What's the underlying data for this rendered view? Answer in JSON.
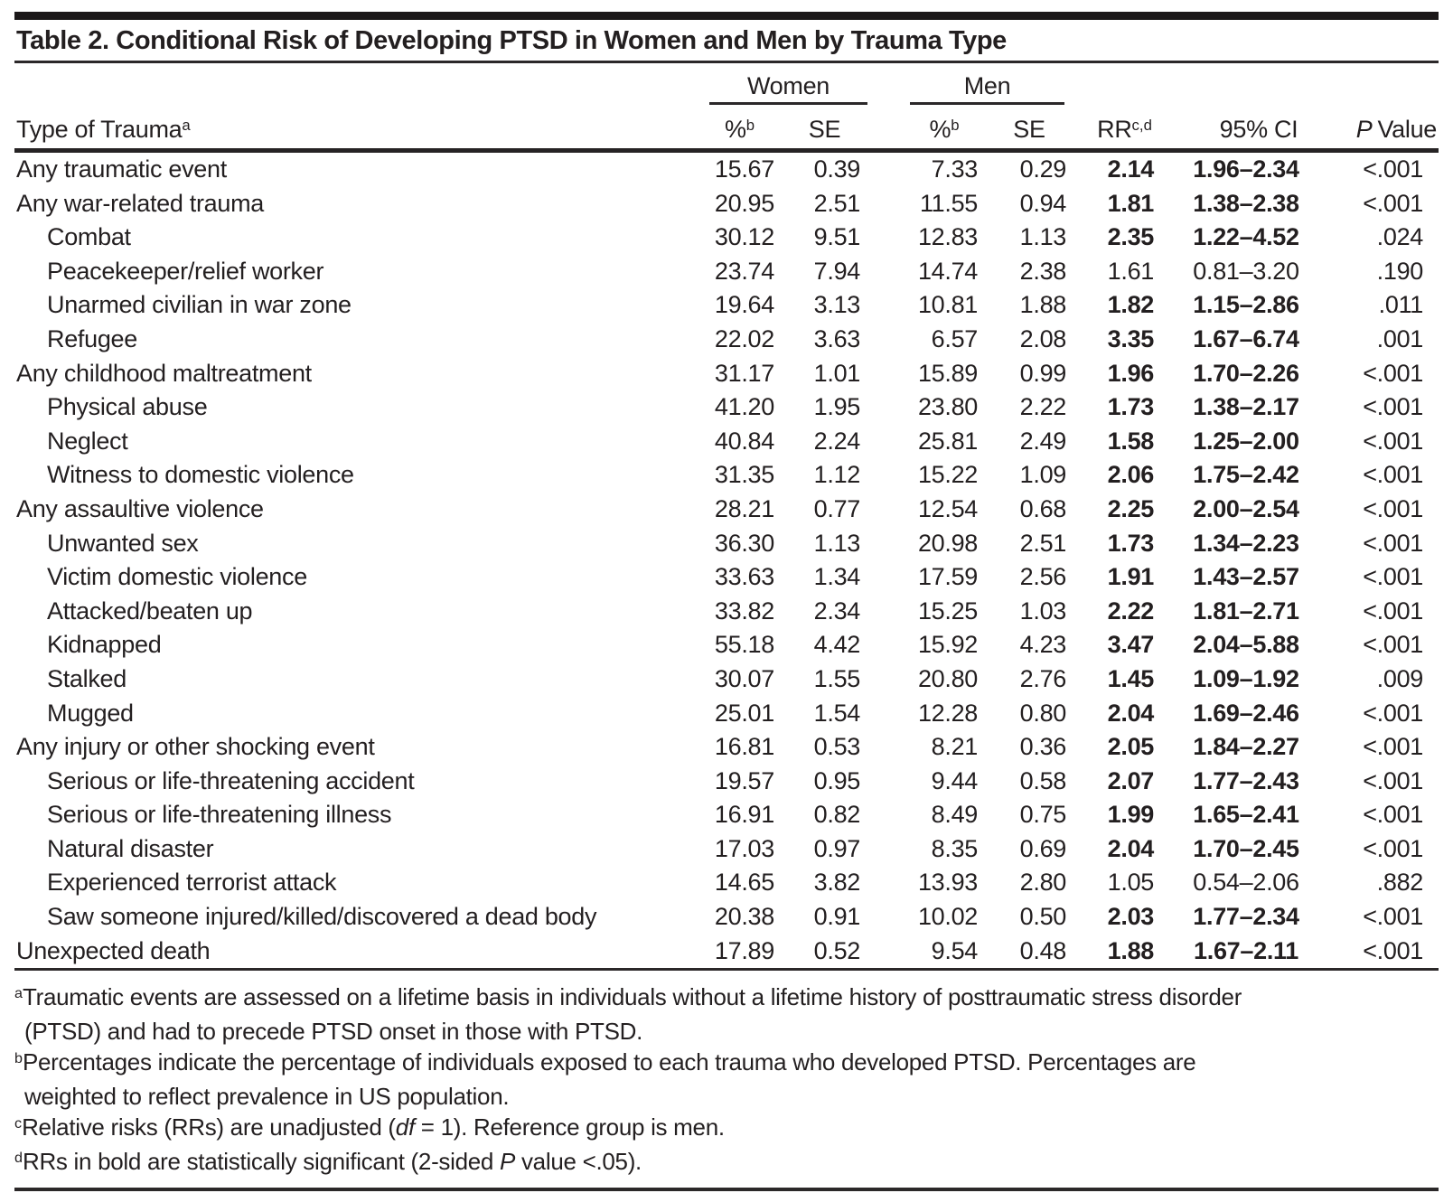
{
  "title": "Table 2. Conditional Risk of Developing PTSD in Women and Men by Trauma Type",
  "header": {
    "trauma_label": "Type of Trauma",
    "trauma_sup": "a",
    "women": "Women",
    "men": "Men",
    "pct": "%",
    "pct_sup": "b",
    "se": "SE",
    "rr": "RR",
    "rr_sup": "c,d",
    "ci": "95% CI",
    "p_italic": "P",
    "p_rest": "Value"
  },
  "rows": [
    {
      "label": "Any traumatic event",
      "indent": false,
      "w_pct": "15.67",
      "w_se": "0.39",
      "m_pct": "7.33",
      "m_se": "0.29",
      "rr": "2.14",
      "ci": "1.96–2.34",
      "p": "<.001",
      "sig": true
    },
    {
      "label": "Any war-related trauma",
      "indent": false,
      "w_pct": "20.95",
      "w_se": "2.51",
      "m_pct": "11.55",
      "m_se": "0.94",
      "rr": "1.81",
      "ci": "1.38–2.38",
      "p": "<.001",
      "sig": true
    },
    {
      "label": "Combat",
      "indent": true,
      "w_pct": "30.12",
      "w_se": "9.51",
      "m_pct": "12.83",
      "m_se": "1.13",
      "rr": "2.35",
      "ci": "1.22–4.52",
      "p": ".024",
      "sig": true
    },
    {
      "label": "Peacekeeper/relief worker",
      "indent": true,
      "w_pct": "23.74",
      "w_se": "7.94",
      "m_pct": "14.74",
      "m_se": "2.38",
      "rr": "1.61",
      "ci": "0.81–3.20",
      "p": ".190",
      "sig": false
    },
    {
      "label": "Unarmed civilian in war zone",
      "indent": true,
      "w_pct": "19.64",
      "w_se": "3.13",
      "m_pct": "10.81",
      "m_se": "1.88",
      "rr": "1.82",
      "ci": "1.15–2.86",
      "p": ".011",
      "sig": true
    },
    {
      "label": "Refugee",
      "indent": true,
      "w_pct": "22.02",
      "w_se": "3.63",
      "m_pct": "6.57",
      "m_se": "2.08",
      "rr": "3.35",
      "ci": "1.67–6.74",
      "p": ".001",
      "sig": true
    },
    {
      "label": "Any childhood maltreatment",
      "indent": false,
      "w_pct": "31.17",
      "w_se": "1.01",
      "m_pct": "15.89",
      "m_se": "0.99",
      "rr": "1.96",
      "ci": "1.70–2.26",
      "p": "<.001",
      "sig": true
    },
    {
      "label": "Physical abuse",
      "indent": true,
      "w_pct": "41.20",
      "w_se": "1.95",
      "m_pct": "23.80",
      "m_se": "2.22",
      "rr": "1.73",
      "ci": "1.38–2.17",
      "p": "<.001",
      "sig": true
    },
    {
      "label": "Neglect",
      "indent": true,
      "w_pct": "40.84",
      "w_se": "2.24",
      "m_pct": "25.81",
      "m_se": "2.49",
      "rr": "1.58",
      "ci": "1.25–2.00",
      "p": "<.001",
      "sig": true
    },
    {
      "label": "Witness to domestic violence",
      "indent": true,
      "w_pct": "31.35",
      "w_se": "1.12",
      "m_pct": "15.22",
      "m_se": "1.09",
      "rr": "2.06",
      "ci": "1.75–2.42",
      "p": "<.001",
      "sig": true
    },
    {
      "label": "Any assaultive violence",
      "indent": false,
      "w_pct": "28.21",
      "w_se": "0.77",
      "m_pct": "12.54",
      "m_se": "0.68",
      "rr": "2.25",
      "ci": "2.00–2.54",
      "p": "<.001",
      "sig": true
    },
    {
      "label": "Unwanted sex",
      "indent": true,
      "w_pct": "36.30",
      "w_se": "1.13",
      "m_pct": "20.98",
      "m_se": "2.51",
      "rr": "1.73",
      "ci": "1.34–2.23",
      "p": "<.001",
      "sig": true
    },
    {
      "label": "Victim domestic violence",
      "indent": true,
      "w_pct": "33.63",
      "w_se": "1.34",
      "m_pct": "17.59",
      "m_se": "2.56",
      "rr": "1.91",
      "ci": "1.43–2.57",
      "p": "<.001",
      "sig": true
    },
    {
      "label": "Attacked/beaten up",
      "indent": true,
      "w_pct": "33.82",
      "w_se": "2.34",
      "m_pct": "15.25",
      "m_se": "1.03",
      "rr": "2.22",
      "ci": "1.81–2.71",
      "p": "<.001",
      "sig": true
    },
    {
      "label": "Kidnapped",
      "indent": true,
      "w_pct": "55.18",
      "w_se": "4.42",
      "m_pct": "15.92",
      "m_se": "4.23",
      "rr": "3.47",
      "ci": "2.04–5.88",
      "p": "<.001",
      "sig": true
    },
    {
      "label": "Stalked",
      "indent": true,
      "w_pct": "30.07",
      "w_se": "1.55",
      "m_pct": "20.80",
      "m_se": "2.76",
      "rr": "1.45",
      "ci": "1.09–1.92",
      "p": ".009",
      "sig": true
    },
    {
      "label": "Mugged",
      "indent": true,
      "w_pct": "25.01",
      "w_se": "1.54",
      "m_pct": "12.28",
      "m_se": "0.80",
      "rr": "2.04",
      "ci": "1.69–2.46",
      "p": "<.001",
      "sig": true
    },
    {
      "label": "Any injury or other shocking event",
      "indent": false,
      "w_pct": "16.81",
      "w_se": "0.53",
      "m_pct": "8.21",
      "m_se": "0.36",
      "rr": "2.05",
      "ci": "1.84–2.27",
      "p": "<.001",
      "sig": true
    },
    {
      "label": "Serious or life-threatening accident",
      "indent": true,
      "w_pct": "19.57",
      "w_se": "0.95",
      "m_pct": "9.44",
      "m_se": "0.58",
      "rr": "2.07",
      "ci": "1.77–2.43",
      "p": "<.001",
      "sig": true
    },
    {
      "label": "Serious or life-threatening illness",
      "indent": true,
      "w_pct": "16.91",
      "w_se": "0.82",
      "m_pct": "8.49",
      "m_se": "0.75",
      "rr": "1.99",
      "ci": "1.65–2.41",
      "p": "<.001",
      "sig": true
    },
    {
      "label": "Natural disaster",
      "indent": true,
      "w_pct": "17.03",
      "w_se": "0.97",
      "m_pct": "8.35",
      "m_se": "0.69",
      "rr": "2.04",
      "ci": "1.70–2.45",
      "p": "<.001",
      "sig": true
    },
    {
      "label": "Experienced terrorist attack",
      "indent": true,
      "w_pct": "14.65",
      "w_se": "3.82",
      "m_pct": "13.93",
      "m_se": "2.80",
      "rr": "1.05",
      "ci": "0.54–2.06",
      "p": ".882",
      "sig": false
    },
    {
      "label": "Saw someone injured/killed/discovered a dead body",
      "indent": true,
      "w_pct": "20.38",
      "w_se": "0.91",
      "m_pct": "10.02",
      "m_se": "0.50",
      "rr": "2.03",
      "ci": "1.77–2.34",
      "p": "<.001",
      "sig": true
    },
    {
      "label": "Unexpected death",
      "indent": false,
      "w_pct": "17.89",
      "w_se": "0.52",
      "m_pct": "9.54",
      "m_se": "0.48",
      "rr": "1.88",
      "ci": "1.67–2.11",
      "p": "<.001",
      "sig": true
    }
  ],
  "footnotes": [
    {
      "marker": "a",
      "line1": "Traumatic events are assessed on a lifetime basis in individuals without a lifetime history of posttraumatic stress disorder",
      "line2": "(PTSD) and had to precede PTSD onset in those with PTSD."
    },
    {
      "marker": "b",
      "line1": "Percentages indicate the percentage of individuals exposed to each trauma who developed PTSD. Percentages are",
      "line2": "weighted to reflect prevalence in US population."
    },
    {
      "marker": "c",
      "pre": "Relative risks (RRs) are unadjusted (",
      "italic": "df",
      "post": " = 1). Reference group is men."
    },
    {
      "marker": "d",
      "pre": "RRs in bold are statistically significant (2-sided ",
      "italic": "P",
      "post": " value <.05)."
    }
  ],
  "colors": {
    "text": "#231f20",
    "rule": "#2b2829",
    "top_bar": "#1b1819",
    "background": "#ffffff"
  }
}
